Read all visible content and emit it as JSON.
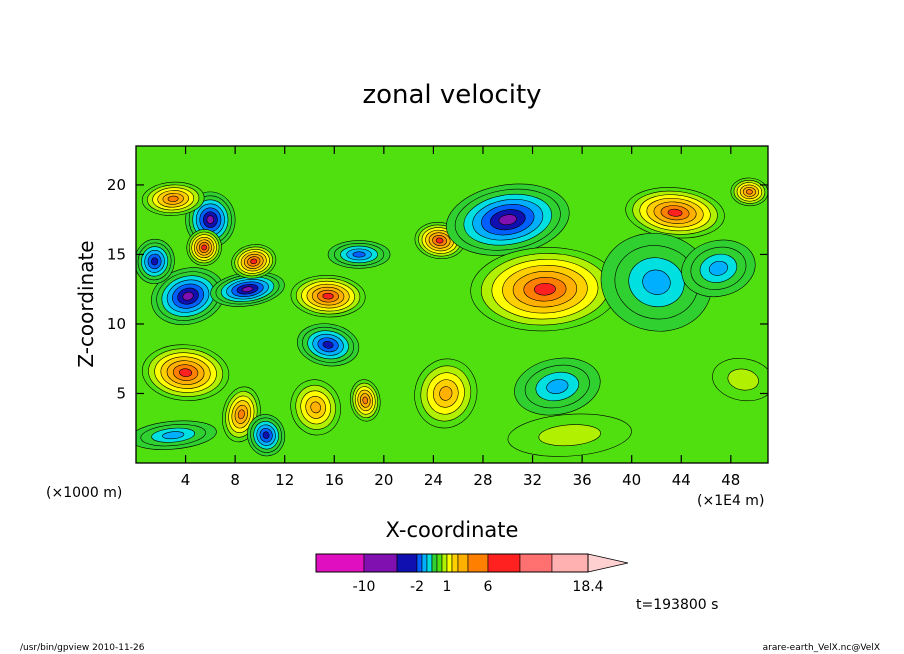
{
  "chart_data": {
    "type": "heatmap",
    "title": "zonal velocity",
    "xlabel": "X-coordinate",
    "ylabel": "Z-coordinate",
    "x_unit": "(×1E4 m)",
    "y_unit": "(×1000 m)",
    "xlim": [
      0,
      51
    ],
    "ylim": [
      0,
      22.8
    ],
    "x_ticks": [
      4,
      8,
      12,
      16,
      20,
      24,
      28,
      32,
      36,
      40,
      44,
      48
    ],
    "y_ticks": [
      5,
      10,
      15,
      20
    ],
    "colorbar": {
      "levels": [
        -14,
        -10,
        -6,
        -2,
        -1.5,
        -1,
        -0.5,
        0,
        0.5,
        1,
        1.5,
        2,
        4,
        6,
        10,
        14,
        18.4
      ],
      "colors": [
        "#e010c0",
        "#8010b0",
        "#1010b0",
        "#0060ff",
        "#00b0ff",
        "#00e0e0",
        "#30d030",
        "#50e010",
        "#b0f000",
        "#ffff00",
        "#ffd000",
        "#ffb000",
        "#ff8000",
        "#ff2020",
        "#ff7070",
        "#ffb0b0",
        "#ffd0d0"
      ],
      "tick_labels": [
        {
          "value": -10,
          "text": "-10"
        },
        {
          "value": -2,
          "text": "-2"
        },
        {
          "value": 1,
          "text": "1"
        },
        {
          "value": 6,
          "text": "6"
        },
        {
          "value": 18.4,
          "text": "18.4"
        }
      ]
    },
    "blobs": [
      {
        "x": 4.2,
        "z": 12.0,
        "rx": 3.0,
        "rz": 2.0,
        "v": -9
      },
      {
        "x": 9.0,
        "z": 12.5,
        "rx": 3.0,
        "rz": 1.2,
        "v": -8
      },
      {
        "x": 6.0,
        "z": 17.5,
        "rx": 2.0,
        "rz": 2.0,
        "v": -6
      },
      {
        "x": 1.5,
        "z": 14.5,
        "rx": 1.6,
        "rz": 1.6,
        "v": -5
      },
      {
        "x": 5.5,
        "z": 15.5,
        "rx": 1.4,
        "rz": 1.3,
        "v": 9
      },
      {
        "x": 9.5,
        "z": 14.5,
        "rx": 1.8,
        "rz": 1.2,
        "v": 7
      },
      {
        "x": 3.0,
        "z": 19.0,
        "rx": 2.5,
        "rz": 1.2,
        "v": 4
      },
      {
        "x": 4.0,
        "z": 6.5,
        "rx": 3.5,
        "rz": 2.0,
        "v": 9
      },
      {
        "x": 8.5,
        "z": 3.5,
        "rx": 1.5,
        "rz": 2.0,
        "v": 5
      },
      {
        "x": 10.5,
        "z": 2.0,
        "rx": 1.5,
        "rz": 1.5,
        "v": -4
      },
      {
        "x": 3.0,
        "z": 2.0,
        "rx": 3.5,
        "rz": 1.0,
        "v": -1.3
      },
      {
        "x": 15.5,
        "z": 12.0,
        "rx": 3.0,
        "rz": 1.5,
        "v": 9
      },
      {
        "x": 15.5,
        "z": 8.5,
        "rx": 2.5,
        "rz": 1.5,
        "v": -5
      },
      {
        "x": 14.5,
        "z": 4.0,
        "rx": 2.0,
        "rz": 2.0,
        "v": 3
      },
      {
        "x": 18.5,
        "z": 4.5,
        "rx": 1.2,
        "rz": 1.5,
        "v": 5
      },
      {
        "x": 18.0,
        "z": 15.0,
        "rx": 2.5,
        "rz": 1.0,
        "v": -1.5
      },
      {
        "x": 24.5,
        "z": 16.0,
        "rx": 2.0,
        "rz": 1.3,
        "v": 7
      },
      {
        "x": 25.0,
        "z": 5.0,
        "rx": 2.5,
        "rz": 2.5,
        "v": 3
      },
      {
        "x": 30.0,
        "z": 17.5,
        "rx": 5.0,
        "rz": 2.5,
        "v": -7
      },
      {
        "x": 33.0,
        "z": 12.5,
        "rx": 6.0,
        "rz": 3.0,
        "v": 7
      },
      {
        "x": 43.5,
        "z": 18.0,
        "rx": 4.0,
        "rz": 1.8,
        "v": 8
      },
      {
        "x": 42.0,
        "z": 13.0,
        "rx": 4.5,
        "rz": 3.5,
        "v": -1.2
      },
      {
        "x": 34.0,
        "z": 5.5,
        "rx": 3.5,
        "rz": 2.0,
        "v": -1.2
      },
      {
        "x": 35.0,
        "z": 2.0,
        "rx": 5.0,
        "rz": 1.5,
        "v": 0.8
      },
      {
        "x": 49.5,
        "z": 19.5,
        "rx": 1.5,
        "rz": 1.0,
        "v": 4
      },
      {
        "x": 49.0,
        "z": 6.0,
        "rx": 2.5,
        "rz": 1.5,
        "v": 0.8
      },
      {
        "x": 47.0,
        "z": 14.0,
        "rx": 3.0,
        "rz": 2.0,
        "v": -1.2
      }
    ]
  },
  "timestamp": "t=193800 s",
  "footer": {
    "left": "/usr/bin/gpview  2010-11-26",
    "right": "arare-earth_VelX.nc@VelX"
  }
}
